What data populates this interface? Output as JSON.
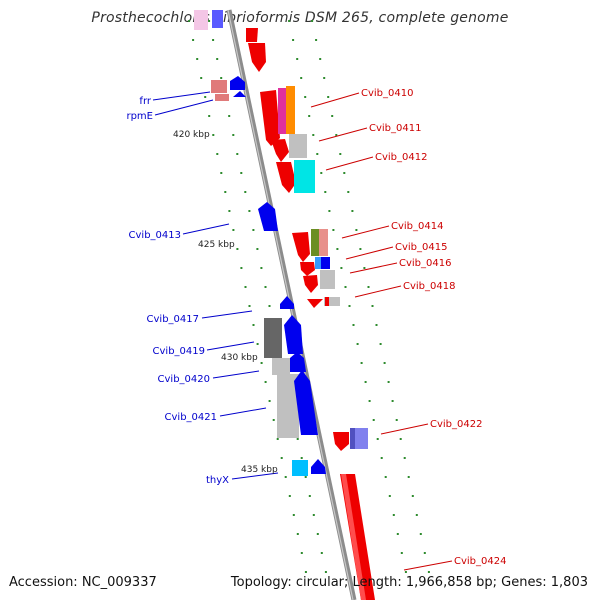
{
  "title": "Prosthecochloris vibrioformis DSM 265, complete genome",
  "accession_text": "Accession: NC_009337",
  "summary_text": "Topology: circular; Length: 1,966,858 bp; Genes: 1,803",
  "colors": {
    "backbone": "#8c8c8c",
    "tick": "#2e8b2e",
    "left_label": "#0000cc",
    "right_label": "#cc0000"
  },
  "scale_labels": [
    "420 kbp",
    "425 kbp",
    "430 kbp",
    "435 kbp"
  ],
  "left_labels": [
    "frr",
    "rpmE",
    "Cvib_0413",
    "Cvib_0417",
    "Cvib_0419",
    "Cvib_0420",
    "Cvib_0421",
    "thyX"
  ],
  "right_labels": [
    "Cvib_0410",
    "Cvib_0411",
    "Cvib_0412",
    "Cvib_0414",
    "Cvib_0415",
    "Cvib_0416",
    "Cvib_0418",
    "Cvib_0422",
    "Cvib_0424"
  ]
}
